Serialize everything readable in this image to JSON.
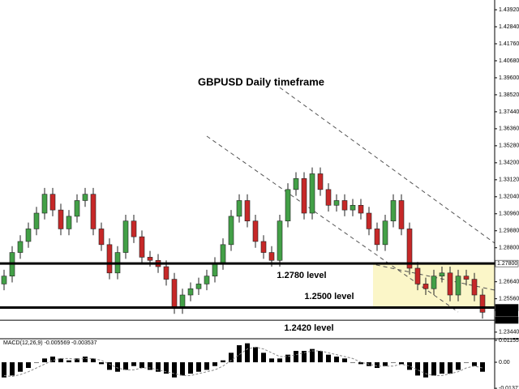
{
  "chart_data": {
    "type": "candlestick",
    "title": "GBPUSD Daily timeframe",
    "annotations": [
      "1.2780  level",
      "1.2500  level",
      "1.2420  level"
    ],
    "ylim": [
      1.2302,
      1.4454
    ],
    "yticks": [
      {
        "value": 1.4392,
        "label": "1.43920"
      },
      {
        "value": 1.4284,
        "label": "1.42840"
      },
      {
        "value": 1.4176,
        "label": "1.41760"
      },
      {
        "value": 1.4068,
        "label": "1.40680"
      },
      {
        "value": 1.396,
        "label": "1.39600"
      },
      {
        "value": 1.3852,
        "label": "1.38520"
      },
      {
        "value": 1.3744,
        "label": "1.37440"
      },
      {
        "value": 1.3636,
        "label": "1.36360"
      },
      {
        "value": 1.3528,
        "label": "1.35280"
      },
      {
        "value": 1.342,
        "label": "1.34200"
      },
      {
        "value": 1.3312,
        "label": "1.33120"
      },
      {
        "value": 1.3204,
        "label": "1.32040"
      },
      {
        "value": 1.3096,
        "label": "1.30960"
      },
      {
        "value": 1.2988,
        "label": "1.29880"
      },
      {
        "value": 1.288,
        "label": "1.28800"
      },
      {
        "value": 1.2664,
        "label": "1.26640"
      },
      {
        "value": 1.2556,
        "label": "1.25560"
      },
      {
        "value": 1.2344,
        "label": "1.23440"
      }
    ],
    "levels": [
      {
        "value": 1.278,
        "label": "1.27800"
      },
      {
        "value": 1.25,
        "label": "1.25000"
      },
      {
        "value": 1.242,
        "label": "1.24200"
      }
    ],
    "last_price": {
      "value": 1.24636,
      "label": "1.24636"
    },
    "open": [
      1.265,
      1.27,
      1.285,
      1.292,
      1.3,
      1.31,
      1.322,
      1.312,
      1.3,
      1.308,
      1.318,
      1.322,
      1.3,
      1.29,
      1.272,
      1.285,
      1.305,
      1.295,
      1.282,
      1.28,
      1.276,
      1.268,
      1.25,
      1.258,
      1.262,
      1.265,
      1.27,
      1.278,
      1.29,
      1.308,
      1.318,
      1.305,
      1.292,
      1.285,
      1.28,
      1.305,
      1.325,
      1.332,
      1.31,
      1.335,
      1.325,
      1.315,
      1.318,
      1.312,
      1.315,
      1.31,
      1.3,
      1.29,
      1.305,
      1.318,
      1.3,
      1.275,
      1.265,
      1.262,
      1.27,
      1.272,
      1.258,
      1.27,
      1.268,
      1.258
    ],
    "high": [
      1.274,
      1.289,
      1.296,
      1.304,
      1.314,
      1.326,
      1.326,
      1.316,
      1.312,
      1.322,
      1.326,
      1.326,
      1.304,
      1.294,
      1.289,
      1.309,
      1.309,
      1.299,
      1.286,
      1.284,
      1.28,
      1.272,
      1.262,
      1.266,
      1.269,
      1.274,
      1.282,
      1.294,
      1.312,
      1.322,
      1.322,
      1.309,
      1.296,
      1.289,
      1.309,
      1.329,
      1.336,
      1.336,
      1.339,
      1.339,
      1.329,
      1.322,
      1.322,
      1.319,
      1.319,
      1.314,
      1.304,
      1.309,
      1.322,
      1.322,
      1.304,
      1.279,
      1.269,
      1.274,
      1.276,
      1.276,
      1.274,
      1.274,
      1.272,
      1.262
    ],
    "low": [
      1.261,
      1.266,
      1.281,
      1.288,
      1.296,
      1.306,
      1.308,
      1.296,
      1.296,
      1.304,
      1.314,
      1.296,
      1.286,
      1.268,
      1.268,
      1.281,
      1.291,
      1.278,
      1.276,
      1.272,
      1.264,
      1.246,
      1.246,
      1.254,
      1.258,
      1.261,
      1.266,
      1.274,
      1.286,
      1.304,
      1.301,
      1.288,
      1.281,
      1.276,
      1.276,
      1.301,
      1.321,
      1.306,
      1.306,
      1.321,
      1.311,
      1.311,
      1.308,
      1.308,
      1.306,
      1.296,
      1.286,
      1.286,
      1.301,
      1.296,
      1.271,
      1.261,
      1.258,
      1.258,
      1.266,
      1.254,
      1.254,
      1.264,
      1.254,
      1.243
    ],
    "close": [
      1.27,
      1.285,
      1.292,
      1.3,
      1.31,
      1.322,
      1.312,
      1.3,
      1.308,
      1.318,
      1.322,
      1.3,
      1.29,
      1.272,
      1.285,
      1.305,
      1.295,
      1.282,
      1.28,
      1.276,
      1.268,
      1.25,
      1.258,
      1.262,
      1.265,
      1.27,
      1.278,
      1.29,
      1.308,
      1.318,
      1.305,
      1.292,
      1.285,
      1.28,
      1.305,
      1.325,
      1.332,
      1.31,
      1.335,
      1.325,
      1.315,
      1.318,
      1.312,
      1.315,
      1.31,
      1.3,
      1.29,
      1.305,
      1.318,
      1.3,
      1.275,
      1.265,
      1.262,
      1.27,
      1.272,
      1.258,
      1.27,
      1.268,
      1.258,
      1.247
    ],
    "macd": {
      "label": "MACD(12,26,9) -0.005569 -0.003537",
      "ylim": [
        -0.0141,
        0.0124
      ],
      "yticks": [
        0.011558,
        {
          "value": 0,
          "label": "0.00"
        },
        -0.013718
      ],
      "histogram": [
        -0.008,
        -0.007,
        -0.005,
        -0.003,
        0.0,
        0.002,
        0.003,
        0.002,
        0.001,
        0.002,
        0.003,
        0.002,
        -0.001,
        -0.004,
        -0.005,
        -0.004,
        -0.002,
        -0.003,
        -0.004,
        -0.005,
        -0.006,
        -0.008,
        -0.007,
        -0.006,
        -0.005,
        -0.004,
        -0.002,
        0.001,
        0.005,
        0.009,
        0.01,
        0.008,
        0.005,
        0.002,
        0.002,
        0.004,
        0.006,
        0.006,
        0.007,
        0.006,
        0.004,
        0.003,
        0.002,
        0.0,
        -0.001,
        -0.002,
        -0.003,
        -0.002,
        0.0,
        -0.001,
        -0.004,
        -0.007,
        -0.008,
        -0.007,
        -0.006,
        -0.006,
        -0.004,
        0.0,
        -0.002,
        -0.005
      ],
      "signal": [
        -0.007,
        -0.0075,
        -0.0065,
        -0.005,
        -0.003,
        -0.001,
        0.001,
        0.002,
        0.002,
        0.0015,
        0.002,
        0.002,
        0.001,
        -0.001,
        -0.003,
        -0.004,
        -0.004,
        -0.003,
        -0.003,
        -0.004,
        -0.005,
        -0.006,
        -0.007,
        -0.007,
        -0.006,
        -0.005,
        -0.004,
        -0.002,
        0.001,
        0.004,
        0.007,
        0.008,
        0.007,
        0.005,
        0.003,
        0.003,
        0.004,
        0.005,
        0.006,
        0.006,
        0.005,
        0.004,
        0.003,
        0.002,
        0.0,
        -0.001,
        -0.002,
        -0.002,
        -0.002,
        -0.001,
        -0.002,
        -0.004,
        -0.006,
        -0.007,
        -0.007,
        -0.006,
        -0.005,
        -0.003,
        -0.002,
        -0.003
      ]
    }
  }
}
